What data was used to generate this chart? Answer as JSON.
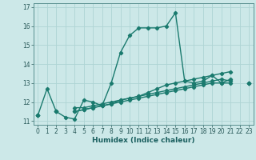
{
  "xlabel": "Humidex (Indice chaleur)",
  "background_color": "#cce8e8",
  "grid_color": "#aed4d4",
  "line_color": "#1a7a6e",
  "marker": "D",
  "markersize": 2.2,
  "linewidth": 1.0,
  "xlim": [
    -0.5,
    23.5
  ],
  "ylim": [
    10.8,
    17.2
  ],
  "yticks": [
    11,
    12,
    13,
    14,
    15,
    16,
    17
  ],
  "xticks": [
    0,
    1,
    2,
    3,
    4,
    5,
    6,
    7,
    8,
    9,
    10,
    11,
    12,
    13,
    14,
    15,
    16,
    17,
    18,
    19,
    20,
    21,
    22,
    23
  ],
  "series": [
    [
      11.3,
      12.7,
      11.5,
      11.2,
      11.1,
      12.1,
      12.0,
      11.8,
      13.0,
      14.6,
      15.5,
      15.9,
      15.9,
      15.9,
      16.0,
      16.7,
      13.1,
      13.0,
      13.1,
      13.4,
      13.0,
      13.2,
      null,
      13.0
    ],
    [
      11.3,
      null,
      11.5,
      null,
      11.7,
      11.7,
      11.8,
      11.9,
      12.0,
      12.1,
      12.2,
      12.3,
      12.5,
      12.7,
      12.9,
      13.0,
      13.1,
      13.2,
      13.3,
      13.4,
      13.5,
      13.6,
      null,
      13.0
    ],
    [
      11.3,
      null,
      11.5,
      null,
      11.5,
      11.6,
      11.7,
      11.8,
      11.9,
      12.0,
      12.1,
      12.2,
      12.3,
      12.4,
      12.5,
      12.6,
      12.7,
      12.8,
      12.9,
      13.0,
      13.0,
      13.0,
      null,
      13.0
    ],
    [
      11.3,
      null,
      11.5,
      null,
      11.5,
      11.6,
      11.7,
      11.8,
      11.9,
      12.1,
      12.2,
      12.3,
      12.4,
      12.5,
      12.6,
      12.7,
      12.8,
      12.9,
      13.0,
      13.1,
      13.2,
      13.1,
      null,
      13.0
    ]
  ]
}
